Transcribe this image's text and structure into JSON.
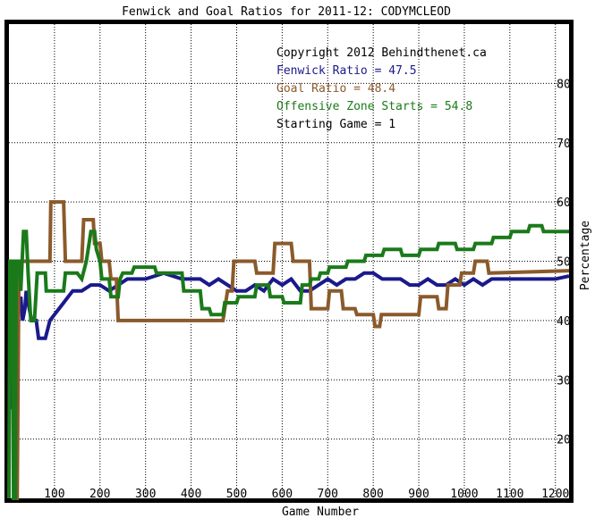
{
  "chart_data": {
    "type": "line",
    "title": "Fenwick and Goal Ratios for 2011-12: CODYMCLEOD",
    "xlabel": "Game Number",
    "ylabel": "Percentage",
    "xlim": [
      0,
      1230
    ],
    "ylim": [
      10,
      90
    ],
    "grid": true,
    "x_ticks": [
      100,
      200,
      300,
      400,
      500,
      600,
      700,
      800,
      900,
      1000,
      1100,
      1200
    ],
    "y_ticks": [
      20,
      30,
      40,
      50,
      60,
      70,
      80
    ],
    "annotations": [
      {
        "text": "Copyright 2012 Behindthenet.ca",
        "color": "#000000"
      },
      {
        "text": "Fenwick Ratio = 47.5",
        "color": "#1a1a8c"
      },
      {
        "text": "Goal Ratio = 48.4",
        "color": "#8b5a2b"
      },
      {
        "text": "Offensive Zone Starts = 54.8",
        "color": "#1a7a1a"
      },
      {
        "text": "Starting Game = 1",
        "color": "#000000"
      }
    ],
    "series": [
      {
        "name": "Fenwick Ratio",
        "color": "#1a1a8c",
        "points": [
          [
            0,
            50
          ],
          [
            6,
            50
          ],
          [
            8,
            25
          ],
          [
            10,
            30
          ],
          [
            12,
            38
          ],
          [
            15,
            50
          ],
          [
            18,
            48
          ],
          [
            22,
            43
          ],
          [
            26,
            44
          ],
          [
            30,
            40
          ],
          [
            35,
            42
          ],
          [
            38,
            45
          ],
          [
            42,
            43
          ],
          [
            50,
            40
          ],
          [
            60,
            40
          ],
          [
            65,
            37
          ],
          [
            80,
            37
          ],
          [
            90,
            40
          ],
          [
            100,
            41
          ],
          [
            110,
            42
          ],
          [
            120,
            43
          ],
          [
            130,
            44
          ],
          [
            140,
            45
          ],
          [
            160,
            45
          ],
          [
            180,
            46
          ],
          [
            200,
            46
          ],
          [
            220,
            45
          ],
          [
            240,
            46
          ],
          [
            260,
            47
          ],
          [
            300,
            47
          ],
          [
            340,
            48
          ],
          [
            380,
            47
          ],
          [
            420,
            47
          ],
          [
            440,
            46
          ],
          [
            460,
            47
          ],
          [
            480,
            46
          ],
          [
            500,
            45
          ],
          [
            520,
            45
          ],
          [
            540,
            46
          ],
          [
            560,
            45
          ],
          [
            580,
            47
          ],
          [
            600,
            46
          ],
          [
            620,
            47
          ],
          [
            640,
            45
          ],
          [
            660,
            45
          ],
          [
            680,
            46
          ],
          [
            700,
            47
          ],
          [
            720,
            46
          ],
          [
            740,
            47
          ],
          [
            760,
            47
          ],
          [
            780,
            48
          ],
          [
            800,
            48
          ],
          [
            820,
            47
          ],
          [
            840,
            47
          ],
          [
            860,
            47
          ],
          [
            880,
            46
          ],
          [
            900,
            46
          ],
          [
            920,
            47
          ],
          [
            940,
            46
          ],
          [
            960,
            46
          ],
          [
            980,
            47
          ],
          [
            1000,
            46
          ],
          [
            1020,
            47
          ],
          [
            1040,
            46
          ],
          [
            1060,
            47
          ],
          [
            1080,
            47
          ],
          [
            1100,
            47
          ],
          [
            1120,
            47
          ],
          [
            1140,
            47
          ],
          [
            1160,
            47
          ],
          [
            1180,
            47
          ],
          [
            1200,
            47
          ],
          [
            1230,
            47.5
          ]
        ]
      },
      {
        "name": "Goal Ratio",
        "color": "#8b5a2b",
        "points": [
          [
            0,
            50
          ],
          [
            8,
            50
          ],
          [
            12,
            0
          ],
          [
            18,
            0
          ],
          [
            22,
            50
          ],
          [
            90,
            50
          ],
          [
            92,
            60
          ],
          [
            120,
            60
          ],
          [
            124,
            50
          ],
          [
            160,
            50
          ],
          [
            164,
            57
          ],
          [
            185,
            57
          ],
          [
            188,
            53
          ],
          [
            200,
            53
          ],
          [
            204,
            50
          ],
          [
            220,
            50
          ],
          [
            224,
            47
          ],
          [
            236,
            47
          ],
          [
            240,
            40
          ],
          [
            470,
            40
          ],
          [
            480,
            45
          ],
          [
            490,
            45
          ],
          [
            494,
            50
          ],
          [
            540,
            50
          ],
          [
            544,
            48
          ],
          [
            580,
            48
          ],
          [
            584,
            53
          ],
          [
            620,
            53
          ],
          [
            624,
            50
          ],
          [
            660,
            50
          ],
          [
            664,
            42
          ],
          [
            700,
            42
          ],
          [
            704,
            45
          ],
          [
            730,
            45
          ],
          [
            734,
            42
          ],
          [
            760,
            42
          ],
          [
            764,
            41
          ],
          [
            800,
            41
          ],
          [
            804,
            39
          ],
          [
            814,
            39
          ],
          [
            818,
            41
          ],
          [
            900,
            41
          ],
          [
            904,
            44
          ],
          [
            940,
            44
          ],
          [
            944,
            42
          ],
          [
            960,
            42
          ],
          [
            964,
            46
          ],
          [
            990,
            46
          ],
          [
            994,
            48
          ],
          [
            1020,
            48
          ],
          [
            1024,
            50
          ],
          [
            1050,
            50
          ],
          [
            1054,
            48
          ],
          [
            1230,
            48.4
          ]
        ]
      },
      {
        "name": "Offensive Zone Starts",
        "color": "#1a7a1a",
        "points": [
          [
            0,
            0
          ],
          [
            2,
            50
          ],
          [
            8,
            50
          ],
          [
            10,
            0
          ],
          [
            14,
            0
          ],
          [
            16,
            50
          ],
          [
            22,
            50
          ],
          [
            26,
            45
          ],
          [
            32,
            55
          ],
          [
            38,
            55
          ],
          [
            42,
            48
          ],
          [
            48,
            40
          ],
          [
            56,
            40
          ],
          [
            62,
            48
          ],
          [
            80,
            48
          ],
          [
            82,
            45
          ],
          [
            120,
            45
          ],
          [
            124,
            48
          ],
          [
            150,
            48
          ],
          [
            160,
            47
          ],
          [
            170,
            50
          ],
          [
            180,
            55
          ],
          [
            188,
            55
          ],
          [
            192,
            52
          ],
          [
            200,
            50
          ],
          [
            204,
            47
          ],
          [
            220,
            47
          ],
          [
            224,
            44
          ],
          [
            240,
            44
          ],
          [
            244,
            47
          ],
          [
            250,
            48
          ],
          [
            270,
            48
          ],
          [
            275,
            49
          ],
          [
            320,
            49
          ],
          [
            324,
            48
          ],
          [
            380,
            48
          ],
          [
            384,
            45
          ],
          [
            420,
            45
          ],
          [
            424,
            42
          ],
          [
            440,
            42
          ],
          [
            444,
            41
          ],
          [
            470,
            41
          ],
          [
            474,
            43
          ],
          [
            500,
            43
          ],
          [
            504,
            44
          ],
          [
            540,
            44
          ],
          [
            544,
            46
          ],
          [
            570,
            46
          ],
          [
            574,
            44
          ],
          [
            600,
            44
          ],
          [
            604,
            43
          ],
          [
            640,
            43
          ],
          [
            644,
            46
          ],
          [
            660,
            46
          ],
          [
            664,
            47
          ],
          [
            680,
            47
          ],
          [
            684,
            48
          ],
          [
            700,
            48
          ],
          [
            704,
            49
          ],
          [
            740,
            49
          ],
          [
            744,
            50
          ],
          [
            780,
            50
          ],
          [
            784,
            51
          ],
          [
            820,
            51
          ],
          [
            824,
            52
          ],
          [
            860,
            52
          ],
          [
            864,
            51
          ],
          [
            900,
            51
          ],
          [
            904,
            52
          ],
          [
            940,
            52
          ],
          [
            944,
            53
          ],
          [
            980,
            53
          ],
          [
            984,
            52
          ],
          [
            1020,
            52
          ],
          [
            1024,
            53
          ],
          [
            1060,
            53
          ],
          [
            1064,
            54
          ],
          [
            1100,
            54
          ],
          [
            1104,
            55
          ],
          [
            1140,
            55
          ],
          [
            1144,
            56
          ],
          [
            1170,
            56
          ],
          [
            1174,
            55
          ],
          [
            1230,
            55
          ]
        ]
      }
    ]
  }
}
